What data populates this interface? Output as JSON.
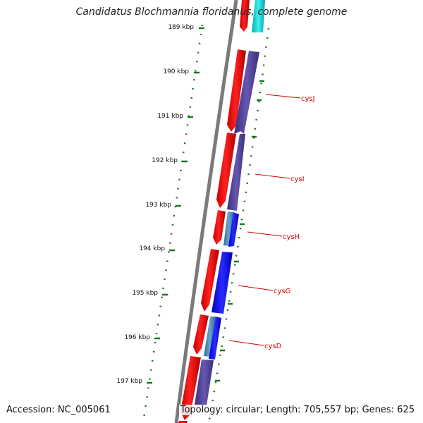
{
  "title": "Candidatus Blochmannia floridanus, complete genome",
  "accession": "Accession: NC_005061",
  "summary": "Topology: circular; Length: 705,557 bp; Genes: 625",
  "ticks": [
    "189 kbp",
    "190 kbp",
    "191 kbp",
    "192 kbp",
    "193 kbp",
    "194 kbp",
    "195 kbp",
    "196 kbp",
    "197 kbp"
  ],
  "genes": [
    "cysJ",
    "cysI",
    "cysH",
    "cysG",
    "cysD"
  ],
  "colors": {
    "backbone": "#777777",
    "forward_cds": "#ff0000",
    "reverse_cds_dark": "#483d8b",
    "reverse_cds_blue": "#0000ff",
    "reverse_cds_steel": "#4682b4",
    "teal": "#00c8c8",
    "tick_marks": "#006400",
    "gene_label": "#cc0000"
  }
}
